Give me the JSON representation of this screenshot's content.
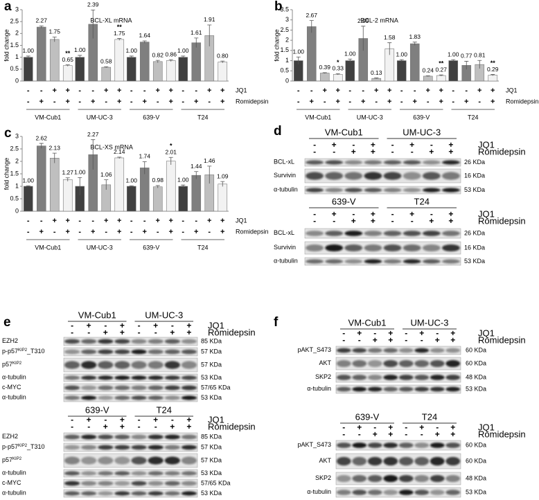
{
  "chart_data": [
    {
      "type": "bar",
      "panel": "a",
      "title": "BCL-XL mRNA",
      "y_label": "fold change",
      "categories": [
        "VM-Cub1",
        "UM-UC-3",
        "639-V",
        "T24"
      ],
      "treatments": [
        {
          "name": "JQ1",
          "signs": [
            "-",
            "-",
            "+",
            "+"
          ]
        },
        {
          "name": "Romidepsin",
          "signs": [
            "-",
            "+",
            "-",
            "+"
          ]
        }
      ],
      "ylim": [
        0,
        3
      ],
      "yticks": [
        0,
        0.5,
        1,
        1.5,
        2,
        2.5,
        3
      ],
      "series": [
        {
          "color": "#404040",
          "values": [
            1,
            1,
            1,
            1
          ],
          "value_labels": [
            "1.00",
            "1.00",
            "1.00",
            "1.00"
          ],
          "errors": [
            0.05,
            0.08,
            0.05,
            0.05
          ]
        },
        {
          "color": "#7f7f7f",
          "values": [
            2.27,
            2.39,
            1.64,
            1.61
          ],
          "errors": [
            0.05,
            0.6,
            0.05,
            0.2
          ]
        },
        {
          "color": "#bfbfbf",
          "values": [
            1.75,
            0.58,
            0.82,
            1.91
          ],
          "errors": [
            0.1,
            0.02,
            0.05,
            0.45
          ]
        },
        {
          "color": "#f2f2f2",
          "values": [
            0.65,
            1.75,
            0.86,
            0.8
          ],
          "value_labels": [
            "0.65",
            "1.75",
            "0.86",
            "0.80"
          ],
          "errors": [
            0.03,
            0.04,
            0.04,
            0.04
          ],
          "significance": [
            "**",
            "**",
            null,
            null
          ]
        }
      ]
    },
    {
      "type": "bar",
      "panel": "b",
      "title": "BCL-2 mRNA",
      "y_label": "fold change",
      "categories": [
        "VM-Cub1",
        "UM-UC-3",
        "639-V",
        "T24"
      ],
      "treatments": [
        {
          "name": "JQ1",
          "signs": [
            "-",
            "-",
            "+",
            "+"
          ]
        },
        {
          "name": "Romidepsin",
          "signs": [
            "-",
            "+",
            "-",
            "+"
          ]
        }
      ],
      "ylim": [
        0,
        3.5
      ],
      "yticks": [
        0,
        0.5,
        1,
        1.5,
        2,
        2.5,
        3,
        3.5
      ],
      "series": [
        {
          "color": "#404040",
          "values": [
            1,
            1,
            1,
            1
          ],
          "value_labels": [
            "1.00",
            "1.00",
            "1.00",
            "1.00"
          ],
          "errors": [
            0.18,
            0.08,
            0.05,
            0.05
          ]
        },
        {
          "color": "#7f7f7f",
          "values": [
            2.67,
            2.09,
            1.83,
            0.77
          ],
          "errors": [
            0.3,
            0.6,
            0.08,
            0.2
          ]
        },
        {
          "color": "#bfbfbf",
          "values": [
            0.39,
            0.13,
            0.24,
            0.81
          ],
          "errors": [
            0.02,
            0.02,
            0.02,
            0.2
          ]
        },
        {
          "color": "#f2f2f2",
          "values": [
            0.33,
            1.58,
            0.27,
            0.29
          ],
          "errors": [
            0.03,
            0.3,
            0.03,
            0.03
          ],
          "significance": [
            "*",
            null,
            "**",
            "**"
          ]
        }
      ]
    },
    {
      "type": "bar",
      "panel": "c",
      "title": "BCL-XS mRNA",
      "y_label": "fold change",
      "categories": [
        "VM-Cub1",
        "UM-UC-3",
        "639-V",
        "T24"
      ],
      "treatments": [
        {
          "name": "JQ1",
          "signs": [
            "-",
            "-",
            "+",
            "+"
          ]
        },
        {
          "name": "Romidepsin",
          "signs": [
            "-",
            "+",
            "-",
            "+"
          ]
        }
      ],
      "ylim": [
        0,
        3
      ],
      "yticks": [
        0,
        0.5,
        1,
        1.5,
        2,
        2.5,
        3
      ],
      "series": [
        {
          "color": "#404040",
          "values": [
            1,
            1,
            1,
            1
          ],
          "value_labels": [
            "1.00",
            "1.00",
            "1.00",
            "1.00"
          ],
          "errors": [
            0.02,
            0.35,
            0.02,
            0.05
          ]
        },
        {
          "color": "#7f7f7f",
          "values": [
            2.62,
            2.27,
            1.74,
            1.44
          ],
          "errors": [
            0.1,
            0.6,
            0.25,
            0.15
          ]
        },
        {
          "color": "#bfbfbf",
          "values": [
            2.13,
            1.06,
            0.98,
            1.46
          ],
          "errors": [
            0.2,
            0.2,
            0.05,
            0.35
          ]
        },
        {
          "color": "#f2f2f2",
          "values": [
            1.27,
            2.14,
            2.01,
            1.09
          ],
          "errors": [
            0.07,
            0.03,
            0.15,
            0.1
          ],
          "significance": [
            null,
            null,
            "*",
            null
          ]
        }
      ]
    }
  ],
  "blots": [
    {
      "panel": "d",
      "treatments": [
        {
          "name": "JQ1",
          "signs": [
            "-",
            "+",
            "-",
            "+"
          ]
        },
        {
          "name": "Romidepsin",
          "signs": [
            "-",
            "-",
            "+",
            "+"
          ]
        }
      ],
      "blocks": [
        {
          "cell_lines": [
            "VM-Cub1",
            "UM-UC-3"
          ],
          "rows": [
            {
              "label": [
                "BCL-xL"
              ],
              "size": "26 KDa"
            },
            {
              "label": [
                "Survivin"
              ],
              "size": "16 KDa"
            },
            {
              "label": [
                "α-tubulin"
              ],
              "size": "53 KDa"
            }
          ]
        },
        {
          "cell_lines": [
            "639-V",
            "T24"
          ],
          "rows": [
            {
              "label": [
                "BCL-xL"
              ],
              "size": "26 KDa"
            },
            {
              "label": [
                "Survivin"
              ],
              "size": "16 KDa"
            },
            {
              "label": [
                "α-tubulin"
              ],
              "size": "53 KDa"
            }
          ]
        }
      ]
    },
    {
      "panel": "e",
      "treatments": [
        {
          "name": "JQ1",
          "signs": [
            "-",
            "+",
            "-",
            "+"
          ]
        },
        {
          "name": "Romidepsin",
          "signs": [
            "-",
            "-",
            "+",
            "+"
          ]
        }
      ],
      "blocks": [
        {
          "cell_lines": [
            "VM-Cub1",
            "UM-UC-3"
          ],
          "rows": [
            {
              "label": [
                "EZH2"
              ],
              "size": "85 KDa"
            },
            {
              "label": [
                "p-p57",
                "KIP2",
                "_T310"
              ],
              "size": "57 KDa"
            },
            {
              "label": [
                "p57",
                "KIP2"
              ],
              "size": "57 KDa"
            },
            {
              "label": [
                "α-tubulin"
              ],
              "size": "53 KDa"
            },
            {
              "label": [
                "c-MYC"
              ],
              "size": "57/65 KDa"
            },
            {
              "label": [
                "α-tubulin"
              ],
              "size": "53 KDa"
            }
          ]
        },
        {
          "cell_lines": [
            "639-V",
            "T24"
          ],
          "rows": [
            {
              "label": [
                "EZH2"
              ],
              "size": "85 KDa"
            },
            {
              "label": [
                "p-p57",
                "KIP2",
                "_T310"
              ],
              "size": "57 KDa"
            },
            {
              "label": [
                "p57",
                "KIP2"
              ],
              "size": "57 KDa"
            },
            {
              "label": [
                "α-tubulin"
              ],
              "size": "53 KDa"
            },
            {
              "label": [
                "c-MYC"
              ],
              "size": "57/65 KDa"
            },
            {
              "label": [
                "α-tubulin"
              ],
              "size": "53 KDa"
            }
          ]
        }
      ]
    },
    {
      "panel": "f",
      "treatments": [
        {
          "name": "JQ1",
          "signs": [
            "-",
            "+",
            "-",
            "+"
          ]
        },
        {
          "name": "Romidepsin",
          "signs": [
            "-",
            "-",
            "+",
            "+"
          ]
        }
      ],
      "blocks": [
        {
          "cell_lines": [
            "VM-Cub1",
            "UM-UC-3"
          ],
          "rows": [
            {
              "label": [
                "pAKT_S473"
              ],
              "size": "60 KDa"
            },
            {
              "label": [
                "AKT"
              ],
              "size": "60 KDa"
            },
            {
              "label": [
                "SKP2"
              ],
              "size": "48 KDa"
            },
            {
              "label": [
                "α-tubulin"
              ],
              "size": "53 KDa"
            }
          ]
        },
        {
          "cell_lines": [
            "639-V",
            "T24"
          ],
          "rows": [
            {
              "label": [
                "pAKT_S473"
              ],
              "size": "60 KDa"
            },
            {
              "label": [
                "AKT"
              ],
              "size": "60 KDa"
            },
            {
              "label": [
                "SKP2"
              ],
              "size": "48 KDa"
            },
            {
              "label": [
                "α-tubulin"
              ],
              "size": "53 KDa"
            }
          ]
        }
      ]
    }
  ]
}
